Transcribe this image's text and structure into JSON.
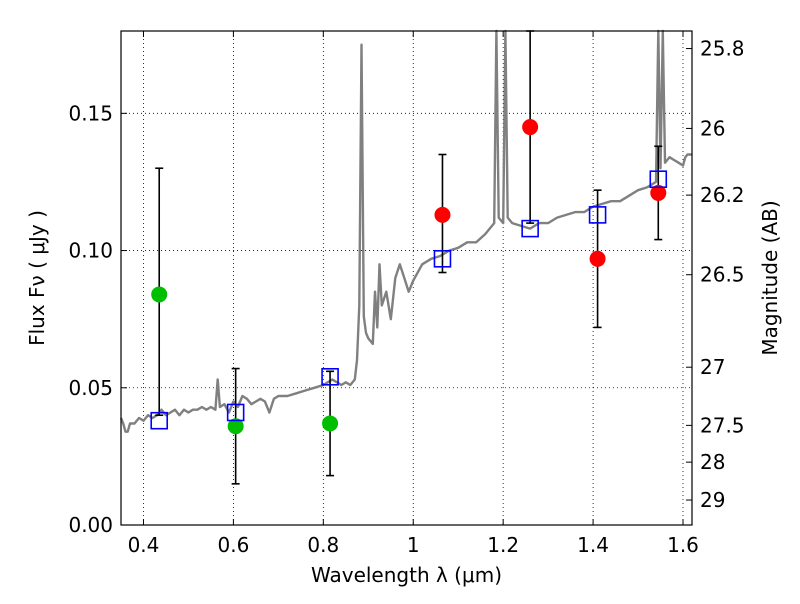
{
  "chart_data": {
    "type": "scatter",
    "xlabel": "Wavelength  λ (μm)",
    "ylabel": "Flux  Fν  ( μJy )",
    "y2label": "Magnitude (AB)",
    "xlim": [
      0.35,
      1.62
    ],
    "ylim": [
      0.0,
      0.18
    ],
    "grid": true,
    "x_ticks": [
      0.4,
      0.6,
      0.8,
      1.0,
      1.2,
      1.4,
      1.6
    ],
    "x_tick_labels": [
      "0.4",
      "0.6",
      "0.8",
      "1",
      "1.2",
      "1.4",
      "1.6"
    ],
    "y_ticks": [
      0.0,
      0.05,
      0.1,
      0.15
    ],
    "y_tick_labels": [
      "0.00",
      "0.05",
      "0.10",
      "0.15"
    ],
    "mag_ticks": [
      {
        "label": "25.8",
        "flux": 0.1736
      },
      {
        "label": "26",
        "flux": 0.1445
      },
      {
        "label": "26.2",
        "flux": 0.1202
      },
      {
        "label": "26.5",
        "flux": 0.0912
      },
      {
        "label": "27",
        "flux": 0.0575
      },
      {
        "label": "27.5",
        "flux": 0.0363
      },
      {
        "label": "28",
        "flux": 0.0229
      },
      {
        "label": "29",
        "flux": 0.0091
      }
    ],
    "model_spectrum": {
      "color": "#808080",
      "points": [
        [
          0.35,
          0.039
        ],
        [
          0.355,
          0.037
        ],
        [
          0.36,
          0.034
        ],
        [
          0.365,
          0.034
        ],
        [
          0.37,
          0.037
        ],
        [
          0.38,
          0.037
        ],
        [
          0.39,
          0.039
        ],
        [
          0.4,
          0.038
        ],
        [
          0.41,
          0.04
        ],
        [
          0.42,
          0.039
        ],
        [
          0.43,
          0.04
        ],
        [
          0.44,
          0.042
        ],
        [
          0.45,
          0.04
        ],
        [
          0.46,
          0.041
        ],
        [
          0.47,
          0.042
        ],
        [
          0.48,
          0.04
        ],
        [
          0.49,
          0.042
        ],
        [
          0.5,
          0.041
        ],
        [
          0.51,
          0.042
        ],
        [
          0.52,
          0.042
        ],
        [
          0.53,
          0.043
        ],
        [
          0.54,
          0.042
        ],
        [
          0.55,
          0.043
        ],
        [
          0.56,
          0.042
        ],
        [
          0.565,
          0.053
        ],
        [
          0.57,
          0.043
        ],
        [
          0.58,
          0.044
        ],
        [
          0.59,
          0.041
        ],
        [
          0.6,
          0.045
        ],
        [
          0.61,
          0.043
        ],
        [
          0.62,
          0.047
        ],
        [
          0.63,
          0.046
        ],
        [
          0.64,
          0.044
        ],
        [
          0.65,
          0.045
        ],
        [
          0.66,
          0.046
        ],
        [
          0.67,
          0.045
        ],
        [
          0.68,
          0.041
        ],
        [
          0.69,
          0.046
        ],
        [
          0.7,
          0.047
        ],
        [
          0.72,
          0.047
        ],
        [
          0.74,
          0.048
        ],
        [
          0.76,
          0.049
        ],
        [
          0.78,
          0.05
        ],
        [
          0.8,
          0.051
        ],
        [
          0.82,
          0.053
        ],
        [
          0.84,
          0.051
        ],
        [
          0.85,
          0.052
        ],
        [
          0.86,
          0.051
        ],
        [
          0.87,
          0.053
        ],
        [
          0.875,
          0.06
        ],
        [
          0.88,
          0.08
        ],
        [
          0.885,
          0.175
        ],
        [
          0.89,
          0.076
        ],
        [
          0.895,
          0.07
        ],
        [
          0.9,
          0.068
        ],
        [
          0.91,
          0.066
        ],
        [
          0.915,
          0.085
        ],
        [
          0.92,
          0.072
        ],
        [
          0.925,
          0.095
        ],
        [
          0.93,
          0.08
        ],
        [
          0.94,
          0.085
        ],
        [
          0.95,
          0.075
        ],
        [
          0.96,
          0.09
        ],
        [
          0.97,
          0.095
        ],
        [
          0.98,
          0.09
        ],
        [
          0.99,
          0.085
        ],
        [
          1.0,
          0.089
        ],
        [
          1.02,
          0.095
        ],
        [
          1.04,
          0.097
        ],
        [
          1.06,
          0.098
        ],
        [
          1.08,
          0.1
        ],
        [
          1.1,
          0.101
        ],
        [
          1.12,
          0.103
        ],
        [
          1.14,
          0.103
        ],
        [
          1.16,
          0.106
        ],
        [
          1.17,
          0.108
        ],
        [
          1.18,
          0.11
        ],
        [
          1.185,
          0.19
        ],
        [
          1.19,
          0.112
        ],
        [
          1.2,
          0.11
        ],
        [
          1.205,
          0.19
        ],
        [
          1.21,
          0.112
        ],
        [
          1.22,
          0.11
        ],
        [
          1.24,
          0.109
        ],
        [
          1.26,
          0.108
        ],
        [
          1.28,
          0.11
        ],
        [
          1.3,
          0.11
        ],
        [
          1.32,
          0.112
        ],
        [
          1.34,
          0.113
        ],
        [
          1.36,
          0.114
        ],
        [
          1.38,
          0.114
        ],
        [
          1.4,
          0.116
        ],
        [
          1.42,
          0.117
        ],
        [
          1.44,
          0.118
        ],
        [
          1.46,
          0.118
        ],
        [
          1.48,
          0.12
        ],
        [
          1.5,
          0.122
        ],
        [
          1.52,
          0.123
        ],
        [
          1.53,
          0.124
        ],
        [
          1.54,
          0.125
        ],
        [
          1.545,
          0.19
        ],
        [
          1.55,
          0.13
        ],
        [
          1.555,
          0.19
        ],
        [
          1.56,
          0.132
        ],
        [
          1.57,
          0.134
        ],
        [
          1.58,
          0.133
        ],
        [
          1.59,
          0.132
        ],
        [
          1.6,
          0.131
        ],
        [
          1.605,
          0.134
        ],
        [
          1.61,
          0.135
        ],
        [
          1.62,
          0.135
        ]
      ]
    },
    "series": [
      {
        "marker": "circle",
        "color": "#00bf00",
        "points": [
          {
            "x": 0.435,
            "y": 0.084,
            "yerr_low": 0.044,
            "yerr_high": 0.046
          },
          {
            "x": 0.605,
            "y": 0.036,
            "yerr_low": 0.021,
            "yerr_high": 0.021
          },
          {
            "x": 0.815,
            "y": 0.037,
            "yerr_low": 0.019,
            "yerr_high": 0.019
          }
        ]
      },
      {
        "marker": "circle",
        "color": "#ff0000",
        "points": [
          {
            "x": 1.065,
            "y": 0.113,
            "yerr_low": 0.021,
            "yerr_high": 0.022
          },
          {
            "x": 1.26,
            "y": 0.145,
            "yerr_low": 0.035,
            "yerr_high": 0.035
          },
          {
            "x": 1.41,
            "y": 0.097,
            "yerr_low": 0.025,
            "yerr_high": 0.025
          },
          {
            "x": 1.545,
            "y": 0.121,
            "yerr_low": 0.017,
            "yerr_high": 0.017
          }
        ]
      },
      {
        "marker": "square-open",
        "color": "#0000ff",
        "points": [
          {
            "x": 0.435,
            "y": 0.038
          },
          {
            "x": 0.605,
            "y": 0.041
          },
          {
            "x": 0.815,
            "y": 0.054
          },
          {
            "x": 1.065,
            "y": 0.097
          },
          {
            "x": 1.26,
            "y": 0.108
          },
          {
            "x": 1.41,
            "y": 0.113
          },
          {
            "x": 1.545,
            "y": 0.126
          }
        ]
      }
    ]
  }
}
